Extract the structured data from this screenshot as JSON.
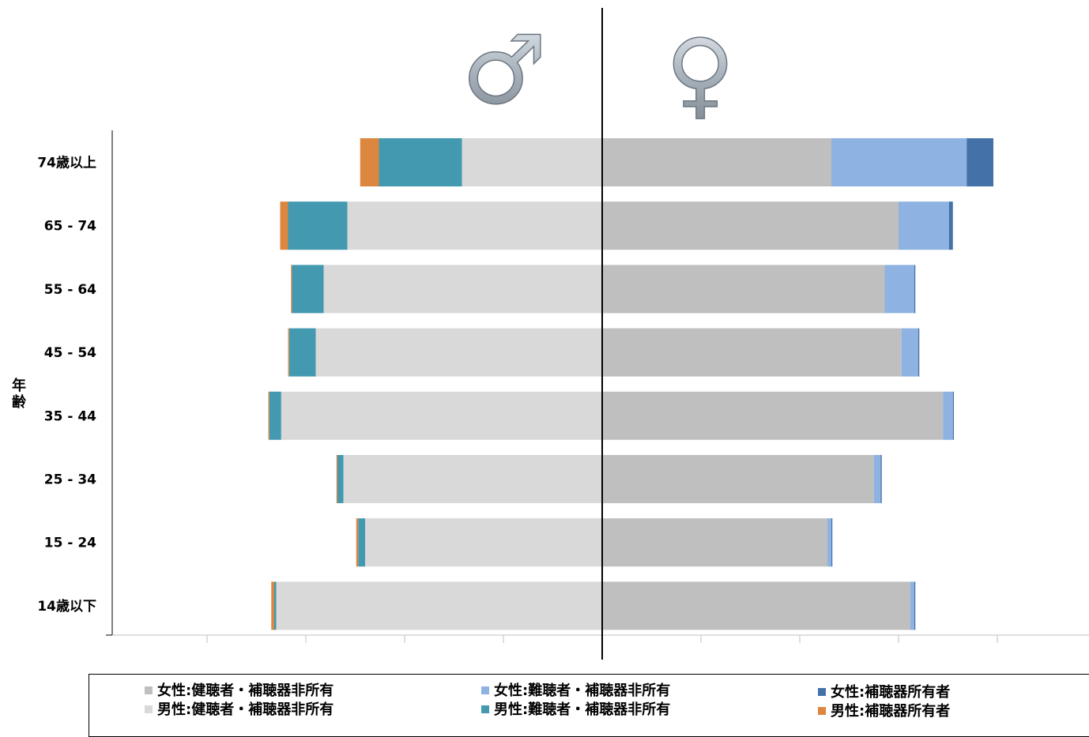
{
  "chart_data": {
    "type": "bar",
    "orientation": "horizontal-population-pyramid",
    "categories": [
      "74歳以上",
      "65 - 74",
      "55 - 64",
      "45 - 54",
      "35 - 44",
      "25 - 34",
      "15 - 24",
      "14歳以下"
    ],
    "y_axis_label": "年齢",
    "male_symbol": "♂",
    "female_symbol": "♀",
    "xlim": [
      -5,
      5
    ],
    "series": [
      {
        "name": "男性:健聴者・補聴器非所有",
        "side": "male",
        "color": "#d9d9d9",
        "values": [
          1.42,
          2.58,
          2.82,
          2.9,
          3.25,
          2.62,
          2.4,
          3.3
        ]
      },
      {
        "name": "男性:難聴者・補聴器非所有",
        "side": "male",
        "color": "#4299b0",
        "values": [
          0.84,
          0.6,
          0.32,
          0.27,
          0.12,
          0.06,
          0.07,
          0.02
        ]
      },
      {
        "name": "男性:補聴器所有者",
        "side": "male",
        "color": "#dd8640",
        "values": [
          0.19,
          0.08,
          0.01,
          0.01,
          0.01,
          0.01,
          0.02,
          0.03
        ]
      },
      {
        "name": "女性:健聴者・補聴器非所有",
        "side": "female",
        "color": "#bfbfbf",
        "values": [
          2.32,
          3.0,
          2.86,
          3.03,
          3.45,
          2.75,
          2.28,
          3.12
        ]
      },
      {
        "name": "女性:難聴者・補聴器非所有",
        "side": "female",
        "color": "#8eb2e1",
        "values": [
          1.37,
          0.51,
          0.3,
          0.17,
          0.1,
          0.07,
          0.04,
          0.04
        ]
      },
      {
        "name": "女性:補聴器所有者",
        "side": "female",
        "color": "#4471a8",
        "values": [
          0.27,
          0.04,
          0.01,
          0.01,
          0.01,
          0.01,
          0.01,
          0.01
        ]
      }
    ],
    "legend": {
      "rows": [
        [
          "女性:健聴者・補聴器非所有",
          "女性:難聴者・補聴器非所有",
          "女性:補聴器所有者"
        ],
        [
          "男性:健聴者・補聴器非所有",
          "男性:難聴者・補聴器非所有",
          "男性:補聴器所有者"
        ]
      ],
      "placement": "bottom"
    }
  }
}
